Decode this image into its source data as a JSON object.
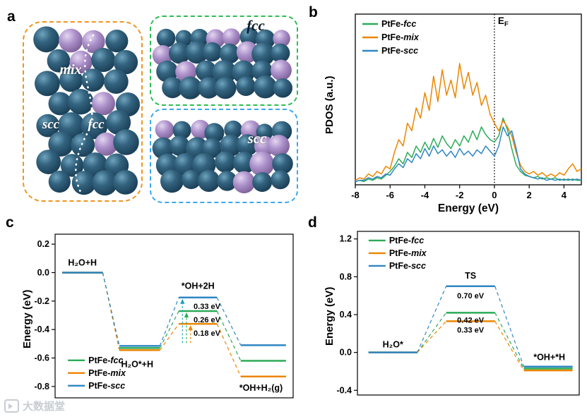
{
  "figure": {
    "panels": {
      "a": {
        "letter": "a",
        "labels": {
          "mix": "mix",
          "scc": "scc",
          "fcc": "fcc",
          "fcc_slab": "fcc",
          "scc_slab": "scc"
        }
      },
      "b": {
        "letter": "b"
      },
      "c": {
        "letter": "c"
      },
      "d": {
        "letter": "d"
      }
    }
  },
  "watermark": {
    "text": "大数据堂"
  },
  "colors": {
    "series_fcc": "#2cab57",
    "series_mix": "#ec8500",
    "series_scc": "#2f87c3",
    "barrier_label_teal": "#18a4b8",
    "box_orange": "#f0941e",
    "box_green": "#2fbc54",
    "box_blue": "#3ba8f0"
  },
  "chart_data": [
    {
      "panel": "b",
      "id": "pdos",
      "type": "line",
      "xlabel": "Energy (eV)",
      "ylabel": "PDOS (a.u.)",
      "xlim": [
        -8,
        5
      ],
      "x_ticks": [
        -8,
        -6,
        -4,
        -2,
        0,
        2,
        4
      ],
      "fermi_line_x": 0,
      "fermi_label_main": "E",
      "fermi_label_sub": "F",
      "legend_position": "top-left",
      "legend": [
        {
          "prefix": "PtFe-",
          "italic": "fcc",
          "color": "#2cab57"
        },
        {
          "prefix": "PtFe-",
          "italic": "mix",
          "color": "#ec8500"
        },
        {
          "prefix": "PtFe-",
          "italic": "scc",
          "color": "#2f87c3"
        }
      ],
      "x": [
        -8,
        -7.75,
        -7.5,
        -7.25,
        -7,
        -6.75,
        -6.5,
        -6.25,
        -6,
        -5.75,
        -5.5,
        -5.25,
        -5,
        -4.75,
        -4.5,
        -4.25,
        -4,
        -3.75,
        -3.5,
        -3.25,
        -3,
        -2.75,
        -2.5,
        -2.25,
        -2,
        -1.75,
        -1.5,
        -1.25,
        -1,
        -0.75,
        -0.5,
        -0.25,
        0,
        0.25,
        0.5,
        0.75,
        1,
        1.25,
        1.5,
        1.75,
        2,
        2.25,
        2.5,
        2.75,
        3,
        3.25,
        3.5,
        3.75,
        4,
        4.25,
        4.5,
        4.75,
        5
      ],
      "series": [
        {
          "name": "PtFe-fcc",
          "color": "#2cab57",
          "values": [
            0.02,
            0.03,
            0.02,
            0.04,
            0.03,
            0.05,
            0.04,
            0.07,
            0.1,
            0.14,
            0.2,
            0.16,
            0.25,
            0.21,
            0.3,
            0.25,
            0.33,
            0.27,
            0.36,
            0.29,
            0.38,
            0.32,
            0.28,
            0.35,
            0.3,
            0.38,
            0.33,
            0.42,
            0.35,
            0.45,
            0.39,
            0.35,
            0.33,
            0.38,
            0.52,
            0.43,
            0.28,
            0.15,
            0.1,
            0.07,
            0.06,
            0.05,
            0.06,
            0.04,
            0.05,
            0.04,
            0.05,
            0.03,
            0.04,
            0.03,
            0.04,
            0.03,
            0.03
          ]
        },
        {
          "name": "PtFe-mix",
          "color": "#ec8500",
          "values": [
            0.03,
            0.05,
            0.04,
            0.08,
            0.06,
            0.1,
            0.08,
            0.14,
            0.12,
            0.25,
            0.35,
            0.3,
            0.48,
            0.42,
            0.6,
            0.52,
            0.72,
            0.58,
            0.85,
            0.65,
            0.9,
            0.7,
            0.82,
            0.68,
            0.95,
            0.75,
            0.88,
            0.7,
            0.8,
            0.62,
            0.7,
            0.55,
            0.48,
            0.42,
            0.5,
            0.45,
            0.38,
            0.25,
            0.15,
            0.1,
            0.08,
            0.1,
            0.07,
            0.09,
            0.06,
            0.08,
            0.06,
            0.09,
            0.07,
            0.12,
            0.16,
            0.1,
            0.12
          ]
        },
        {
          "name": "PtFe-scc",
          "color": "#2f87c3",
          "values": [
            0.02,
            0.03,
            0.03,
            0.05,
            0.04,
            0.06,
            0.05,
            0.08,
            0.07,
            0.12,
            0.16,
            0.13,
            0.2,
            0.17,
            0.24,
            0.2,
            0.28,
            0.22,
            0.3,
            0.24,
            0.27,
            0.22,
            0.26,
            0.21,
            0.28,
            0.23,
            0.26,
            0.22,
            0.27,
            0.24,
            0.3,
            0.26,
            0.22,
            0.3,
            0.45,
            0.38,
            0.42,
            0.28,
            0.12,
            0.08,
            0.06,
            0.05,
            0.04,
            0.05,
            0.03,
            0.04,
            0.03,
            0.04,
            0.03,
            0.04,
            0.03,
            0.04,
            0.03
          ]
        }
      ]
    },
    {
      "panel": "c",
      "id": "water-dissociation-diagram",
      "type": "energy_diagram",
      "ylabel": "Energy (eV)",
      "ylim": [
        -0.88,
        0.27
      ],
      "y_ticks": [
        0.2,
        0.0,
        -0.2,
        -0.4,
        -0.6,
        -0.8
      ],
      "stages": [
        "H₂O+H",
        "H₂O*+H",
        "*OH+2H",
        "*OH+H₂(g)"
      ],
      "stage_x": [
        [
          0.03,
          0.2
        ],
        [
          0.27,
          0.44
        ],
        [
          0.52,
          0.68
        ],
        [
          0.78,
          0.97
        ]
      ],
      "series": [
        {
          "name": "PtFe-fcc",
          "prefix": "PtFe-",
          "italic": "fcc",
          "color": "#2cab57",
          "levels": [
            0.0,
            -0.53,
            -0.27,
            -0.62
          ],
          "barrier_eV": 0.26
        },
        {
          "name": "PtFe-mix",
          "prefix": "PtFe-",
          "italic": "mix",
          "color": "#ec8500",
          "levels": [
            0.0,
            -0.545,
            -0.36,
            -0.73
          ],
          "barrier_eV": 0.18
        },
        {
          "name": "PtFe-scc",
          "prefix": "PtFe-",
          "italic": "scc",
          "color": "#2f87c3",
          "levels": [
            0.0,
            -0.515,
            -0.175,
            -0.51
          ],
          "barrier_eV": 0.33
        }
      ],
      "stage_labels": [
        {
          "text": "H₂O+H",
          "x": 0.115,
          "y": 0.07
        },
        {
          "text": "H₂O*+H",
          "x": 0.345,
          "y": -0.645
        },
        {
          "text": "*OH+2H",
          "x": 0.6,
          "y": -0.095
        },
        {
          "text": "*OH+H₂(g)",
          "x": 0.865,
          "y": -0.81
        }
      ],
      "energy_labels": [
        {
          "text": "0.33 eV",
          "x": 0.638,
          "y": -0.235,
          "color": "#18a4b8"
        },
        {
          "text": "0.26 eV",
          "x": 0.638,
          "y": -0.33,
          "color": "#2cab57"
        },
        {
          "text": "0.18 eV",
          "x": 0.638,
          "y": -0.425,
          "color": "#ec8500"
        }
      ],
      "arrows": [
        {
          "x": 0.535,
          "y0": -0.495,
          "y1": -0.175,
          "color": "#18a4b8"
        },
        {
          "x": 0.552,
          "y0": -0.495,
          "y1": -0.27,
          "color": "#2cab57"
        },
        {
          "x": 0.569,
          "y0": -0.495,
          "y1": -0.36,
          "color": "#ec8500"
        }
      ],
      "legend_pos": {
        "fx": 0.03,
        "fy": 0.745
      }
    },
    {
      "panel": "d",
      "id": "oh-formation-diagram",
      "type": "energy_diagram",
      "ylabel": "Energy (eV)",
      "ylim": [
        -0.45,
        1.28
      ],
      "y_ticks": [
        1.2,
        0.8,
        0.4,
        0.0,
        -0.4
      ],
      "stages": [
        "H₂O*",
        "TS",
        "*OH+*H"
      ],
      "stage_x": [
        [
          0.05,
          0.27
        ],
        [
          0.4,
          0.62
        ],
        [
          0.75,
          0.97
        ]
      ],
      "series": [
        {
          "name": "PtFe-fcc",
          "prefix": "PtFe-",
          "italic": "fcc",
          "color": "#2cab57",
          "levels": [
            0.0,
            0.42,
            -0.17
          ],
          "barrier_eV": 0.42
        },
        {
          "name": "PtFe-mix",
          "prefix": "PtFe-",
          "italic": "mix",
          "color": "#ec8500",
          "levels": [
            0.0,
            0.33,
            -0.19
          ],
          "barrier_eV": 0.33
        },
        {
          "name": "PtFe-scc",
          "prefix": "PtFe-",
          "italic": "scc",
          "color": "#2f87c3",
          "levels": [
            0.0,
            0.7,
            -0.15
          ],
          "barrier_eV": 0.7
        }
      ],
      "stage_labels": [
        {
          "text": "H₂O*",
          "x": 0.16,
          "y": 0.085
        },
        {
          "text": "TS",
          "x": 0.51,
          "y": 0.81
        },
        {
          "text": "*OH+*H",
          "x": 0.865,
          "y": -0.05
        }
      ],
      "energy_labels": [
        {
          "text": "0.70 eV",
          "x": 0.51,
          "y": 0.6,
          "color": "#18a4b8"
        },
        {
          "text": "0.42 eV",
          "x": 0.51,
          "y": 0.345,
          "color": "#2cab57"
        },
        {
          "text": "0.33 eV",
          "x": 0.51,
          "y": 0.24,
          "color": "#ec8500"
        }
      ],
      "arrows": [],
      "legend_pos": {
        "fx": 0.025,
        "fy": 0.03
      }
    }
  ]
}
